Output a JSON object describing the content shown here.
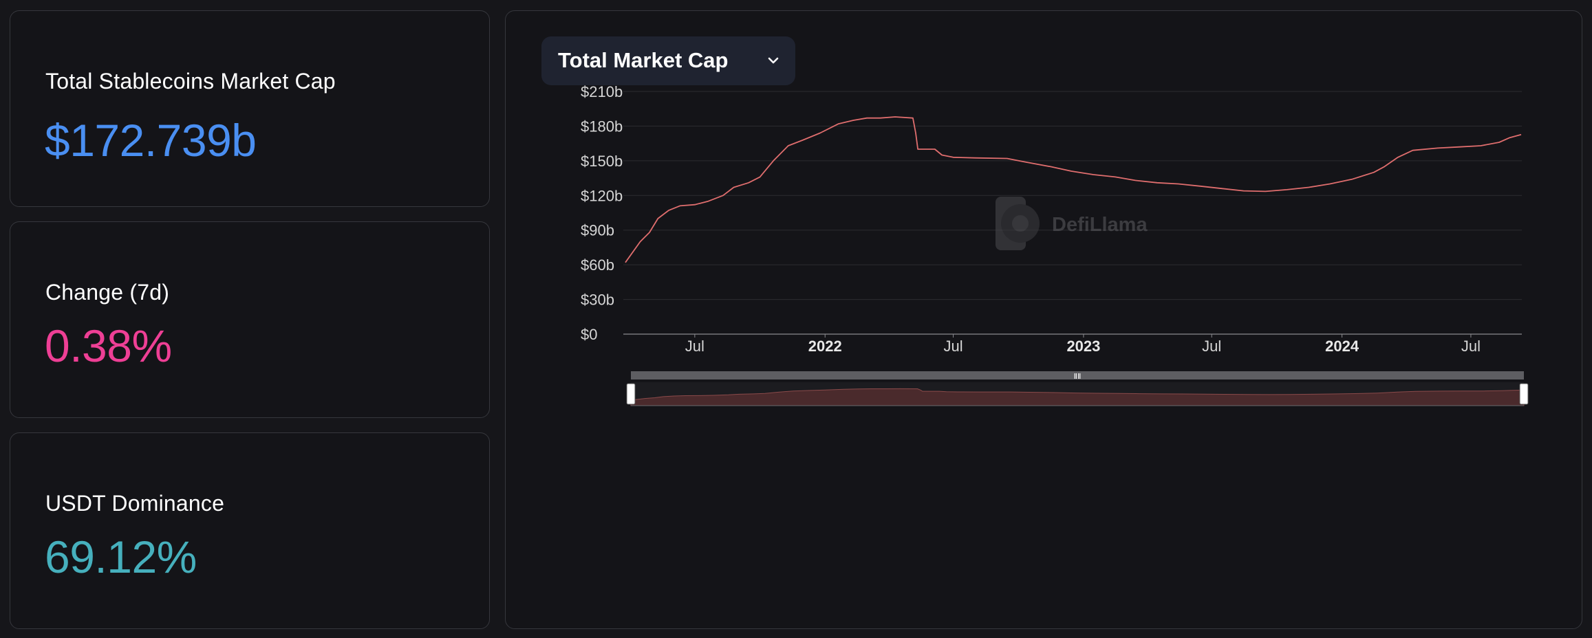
{
  "cards": [
    {
      "label": "Total Stablecoins Market Cap",
      "value": "$172.739b",
      "color": "#4a8ff2"
    },
    {
      "label": "Change (7d)",
      "value": "0.38%",
      "color": "#ee3f95"
    },
    {
      "label": "USDT Dominance",
      "value": "69.12%",
      "color": "#46b0bd"
    }
  ],
  "chart_selector": {
    "label": "Total Market Cap",
    "icon": "chevron-down-icon"
  },
  "watermark": {
    "text": "DefiLlama"
  },
  "colors": {
    "line": "#e06e6e",
    "brush_fill": "#4a2a2c",
    "grid": "#2c2c30"
  },
  "chart_data": {
    "type": "line",
    "title": "",
    "xlabel": "",
    "ylabel": "",
    "ylim": [
      0,
      210
    ],
    "y_ticks": [
      0,
      30,
      60,
      90,
      120,
      150,
      180,
      210
    ],
    "y_tick_labels": [
      "$0",
      "$30b",
      "$60b",
      "$90b",
      "$120b",
      "$150b",
      "$180b",
      "$210b"
    ],
    "x_ticks": [
      {
        "label": "Jul",
        "date": "2021-07-01",
        "bold": false
      },
      {
        "label": "2022",
        "date": "2022-01-01",
        "bold": true
      },
      {
        "label": "Jul",
        "date": "2022-07-01",
        "bold": false
      },
      {
        "label": "2023",
        "date": "2023-01-01",
        "bold": true
      },
      {
        "label": "Jul",
        "date": "2023-07-01",
        "bold": false
      },
      {
        "label": "2024",
        "date": "2024-01-01",
        "bold": true
      },
      {
        "label": "Jul",
        "date": "2024-07-01",
        "bold": false
      }
    ],
    "xlim": [
      "2021-03-25",
      "2024-09-10"
    ],
    "grid": true,
    "series": [
      {
        "name": "",
        "points": [
          [
            "2021-03-25",
            62
          ],
          [
            "2021-04-01",
            68
          ],
          [
            "2021-04-15",
            80
          ],
          [
            "2021-04-28",
            88
          ],
          [
            "2021-05-10",
            100
          ],
          [
            "2021-05-25",
            107
          ],
          [
            "2021-06-10",
            111
          ],
          [
            "2021-07-01",
            112
          ],
          [
            "2021-07-20",
            115
          ],
          [
            "2021-08-10",
            120
          ],
          [
            "2021-08-25",
            127
          ],
          [
            "2021-09-15",
            131
          ],
          [
            "2021-10-01",
            136
          ],
          [
            "2021-10-20",
            150
          ],
          [
            "2021-11-10",
            163
          ],
          [
            "2021-12-01",
            168
          ],
          [
            "2021-12-25",
            174
          ],
          [
            "2022-01-20",
            182
          ],
          [
            "2022-02-10",
            185
          ],
          [
            "2022-03-01",
            187
          ],
          [
            "2022-03-20",
            187
          ],
          [
            "2022-04-10",
            188
          ],
          [
            "2022-05-05",
            187
          ],
          [
            "2022-05-09",
            174
          ],
          [
            "2022-05-12",
            160
          ],
          [
            "2022-05-25",
            160
          ],
          [
            "2022-06-05",
            160
          ],
          [
            "2022-06-15",
            155
          ],
          [
            "2022-07-01",
            153
          ],
          [
            "2022-08-01",
            152.5
          ],
          [
            "2022-09-15",
            152
          ],
          [
            "2022-10-10",
            149
          ],
          [
            "2022-11-15",
            145
          ],
          [
            "2022-12-15",
            141
          ],
          [
            "2023-01-15",
            138
          ],
          [
            "2023-02-15",
            136
          ],
          [
            "2023-03-15",
            133
          ],
          [
            "2023-04-15",
            131
          ],
          [
            "2023-05-15",
            130
          ],
          [
            "2023-06-15",
            128
          ],
          [
            "2023-07-15",
            126
          ],
          [
            "2023-08-15",
            124
          ],
          [
            "2023-09-15",
            123.5
          ],
          [
            "2023-10-15",
            125
          ],
          [
            "2023-11-15",
            127
          ],
          [
            "2023-12-15",
            130
          ],
          [
            "2024-01-15",
            134
          ],
          [
            "2024-02-15",
            140
          ],
          [
            "2024-03-01",
            145
          ],
          [
            "2024-03-20",
            153
          ],
          [
            "2024-04-10",
            159
          ],
          [
            "2024-05-15",
            161
          ],
          [
            "2024-06-15",
            162
          ],
          [
            "2024-07-15",
            163
          ],
          [
            "2024-08-10",
            166
          ],
          [
            "2024-08-25",
            170
          ],
          [
            "2024-09-10",
            172.7
          ]
        ]
      }
    ]
  }
}
